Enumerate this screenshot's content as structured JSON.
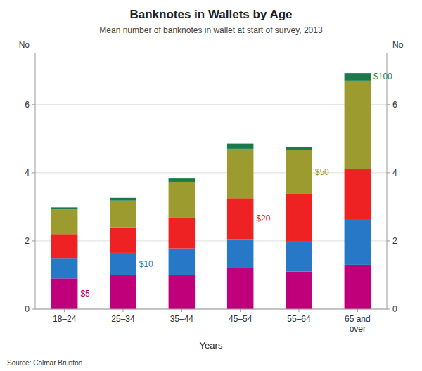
{
  "chart_data": {
    "type": "bar",
    "stacked": true,
    "title": "Banknotes in Wallets by Age",
    "subtitle": "Mean number of banknotes in wallet at start of survey, 2013",
    "xlabel": "Years",
    "ylabel": "No",
    "y2label": "No",
    "source": "Source: Colmar Brunton",
    "categories": [
      "18–24",
      "25–34",
      "35–44",
      "45–54",
      "55–64",
      "65 and\nover"
    ],
    "series": [
      {
        "name": "$5",
        "color": "#c0007a",
        "values": [
          0.9,
          1.0,
          1.0,
          1.2,
          1.1,
          1.3
        ]
      },
      {
        "name": "$10",
        "color": "#2878c8",
        "values": [
          0.6,
          0.65,
          0.78,
          0.85,
          0.88,
          1.35
        ]
      },
      {
        "name": "$20",
        "color": "#ee2222",
        "values": [
          0.7,
          0.75,
          0.9,
          1.2,
          1.4,
          1.45
        ]
      },
      {
        "name": "$50",
        "color": "#9b9b30",
        "values": [
          0.72,
          0.78,
          1.05,
          1.45,
          1.28,
          2.6
        ]
      },
      {
        "name": "$100",
        "color": "#1a7a4a",
        "values": [
          0.06,
          0.08,
          0.1,
          0.15,
          0.1,
          0.22
        ]
      }
    ],
    "ylim": [
      0,
      7.5
    ],
    "yticks": [
      0,
      2,
      4,
      6
    ],
    "y2lim": [
      0,
      7.5
    ],
    "y2ticks": [
      0,
      2,
      4,
      6
    ],
    "grid": true
  }
}
